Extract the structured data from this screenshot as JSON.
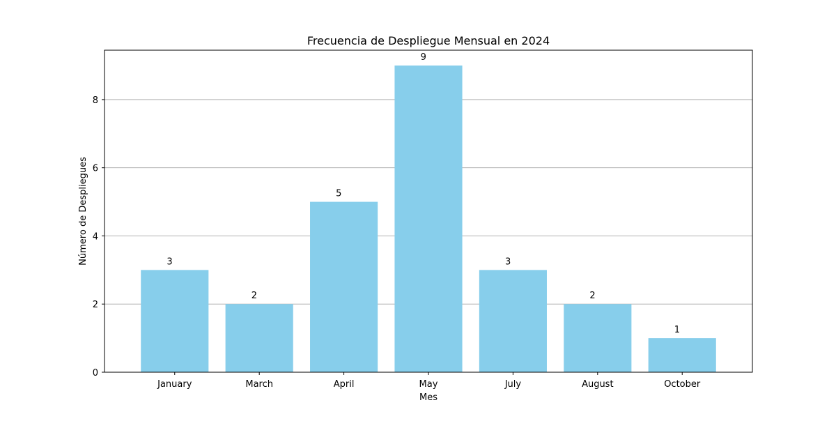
{
  "chart_data": {
    "type": "bar",
    "title": "Frecuencia de Despliegue Mensual en 2024",
    "xlabel": "Mes",
    "ylabel": "Número de Despliegues",
    "categories": [
      "January",
      "March",
      "April",
      "May",
      "July",
      "August",
      "October"
    ],
    "values": [
      3,
      2,
      5,
      9,
      3,
      2,
      1
    ],
    "data_labels": [
      "3",
      "2",
      "5",
      "9",
      "3",
      "2",
      "1"
    ],
    "ylim": [
      0,
      9.45
    ],
    "yticks": [
      0,
      2,
      4,
      6,
      8
    ],
    "grid": "y-major",
    "legend": "none",
    "bar_color": "#87CEEB",
    "grid_color": "#b0b0b0"
  }
}
